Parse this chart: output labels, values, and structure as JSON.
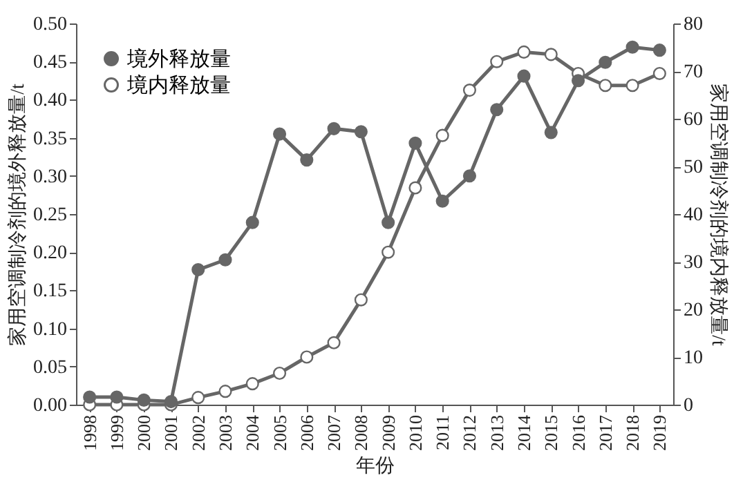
{
  "chart_data": {
    "type": "line",
    "xlabel": "年份",
    "ylabel": "家用空调制冷剂的境外释放量/t",
    "y2label": "家用空调制冷剂的境内释放量/t",
    "categories": [
      "1998",
      "1999",
      "2000",
      "2001",
      "2002",
      "2003",
      "2004",
      "2005",
      "2006",
      "2007",
      "2008",
      "2009",
      "2010",
      "2011",
      "2012",
      "2013",
      "2014",
      "2015",
      "2016",
      "2017",
      "2018",
      "2019"
    ],
    "series": [
      {
        "name": "境外释放量",
        "color": "#666666",
        "values": [
          0.01,
          0.01,
          0.006,
          0.004,
          0.177,
          0.19,
          0.239,
          0.355,
          0.321,
          0.362,
          0.358,
          0.239,
          0.343,
          0.267,
          0.3,
          0.387,
          0.431,
          0.357,
          0.425,
          0.449,
          0.469,
          0.465
        ]
      },
      {
        "name": "境内释放量",
        "color": "#666666",
        "axis": "y2",
        "values": [
          0,
          0,
          0,
          0,
          1.5,
          2.8,
          4.4,
          6.6,
          10,
          13,
          22,
          32,
          45.5,
          56.5,
          66,
          72,
          74,
          73.5,
          69.5,
          67,
          67,
          69.5
        ]
      }
    ],
    "ylim": [
      0,
      0.5
    ],
    "yticks": [
      {
        "value": 0,
        "label": "0.00"
      },
      {
        "value": 0.05,
        "label": "0.05"
      },
      {
        "value": 0.1,
        "label": "0.10"
      },
      {
        "value": 0.15,
        "label": "0.15"
      },
      {
        "value": 0.2,
        "label": "0.20"
      },
      {
        "value": 0.25,
        "label": "0.25"
      },
      {
        "value": 0.3,
        "label": "0.30"
      },
      {
        "value": 0.35,
        "label": "0.35"
      },
      {
        "value": 0.4,
        "label": "0.40"
      },
      {
        "value": 0.45,
        "label": "0.45"
      },
      {
        "value": 0.5,
        "label": "0.50"
      }
    ],
    "y2lim": [
      0,
      80
    ],
    "y2ticks": [
      0,
      10,
      20,
      30,
      40,
      50,
      60,
      70,
      80
    ],
    "marker": "circle",
    "line_style": "solid",
    "grid": false,
    "legend": "top left"
  }
}
